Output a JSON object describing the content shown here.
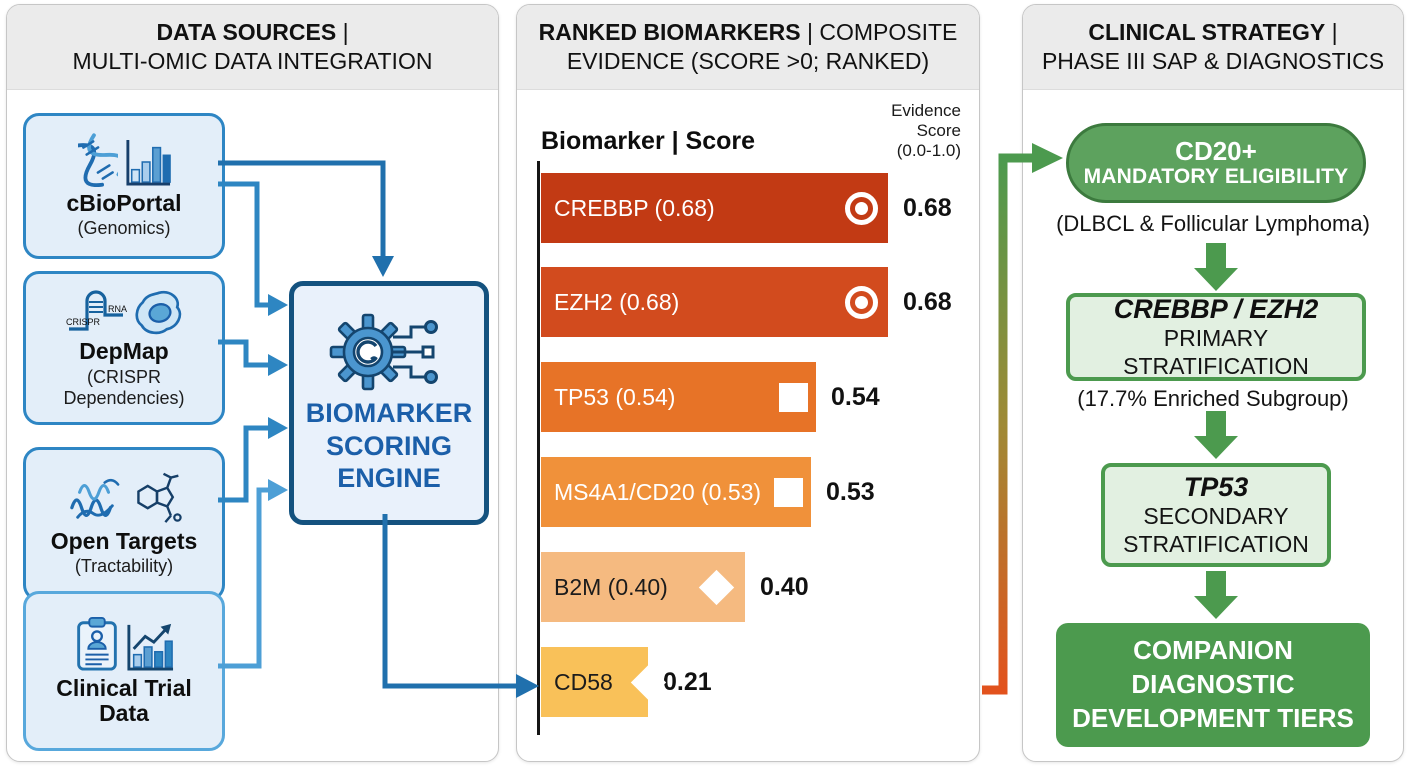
{
  "palette": {
    "green": "#4c9a4e",
    "green-pill": "#5da25e",
    "green-light": "#e2f0e1",
    "blue-border": "#2e86c4",
    "blue-connector-dark": "#2070ad",
    "blue-connector-mid": "#2e86c2",
    "blue-connector-light": "#4d9fd6",
    "gradient-arrow-start": "#e2521d",
    "gradient-arrow-end": "#4c9a4e"
  },
  "sources": {
    "title_bold": "DATA SOURCES",
    "title_rest": " |",
    "title_line2": "MULTI-OMIC DATA INTEGRATION",
    "boxes": [
      {
        "label": "cBioPortal",
        "sublabel": "(Genomics)",
        "icons": [
          "dna-icon",
          "bar-chart-icon"
        ]
      },
      {
        "label": "DepMap",
        "sublabel": "(CRISPR Dependencies)",
        "icons": [
          "crispr-rna-icon",
          "cell-icon"
        ],
        "icon_text_left": "CRISPR",
        "icon_text_right": "RNA"
      },
      {
        "label": "Open Targets",
        "sublabel": "(Tractability)",
        "icons": [
          "protein-icon",
          "molecule-icon"
        ]
      },
      {
        "label": "Clinical Trial Data",
        "sublabel": "",
        "icons": [
          "clipboard-patient-icon",
          "trend-chart-icon"
        ]
      }
    ],
    "engine_label": "BIOMARKER SCORING ENGINE"
  },
  "ranked": {
    "title_bold": "RANKED BIOMARKERS",
    "title_rest": " | COMPOSITE",
    "title_line2": "EVIDENCE (SCORE >0; RANKED)",
    "col_header": "Biomarker | Score",
    "axis_note_lines": [
      "Evidence",
      "Score",
      "(0.0-1.0)"
    ],
    "chart_data": {
      "type": "bar",
      "orientation": "horizontal",
      "title": "RANKED BIOMARKERS | COMPOSITE EVIDENCE (SCORE >0; RANKED)",
      "xlabel": "Evidence Score (0.0-1.0)",
      "xlim": [
        0.0,
        1.0
      ],
      "grid": false,
      "bars": [
        {
          "gene": "CREBBP",
          "label": "CREBBP (0.68)",
          "value": 0.68,
          "score_label": "0.68",
          "color": "#c23a14",
          "text_color": "#ffffff",
          "marker": "target"
        },
        {
          "gene": "EZH2",
          "label": "EZH2 (0.68)",
          "value": 0.68,
          "score_label": "0.68",
          "color": "#d24b1e",
          "text_color": "#ffffff",
          "marker": "target"
        },
        {
          "gene": "TP53",
          "label": "TP53 (0.54)",
          "value": 0.54,
          "score_label": "0.54",
          "color": "#e77327",
          "text_color": "#ffffff",
          "marker": "square"
        },
        {
          "gene": "MS4A1/CD20",
          "label": "MS4A1/CD20 (0.53)",
          "value": 0.53,
          "score_label": "0.53",
          "color": "#f0913a",
          "text_color": "#ffffff",
          "marker": "square"
        },
        {
          "gene": "B2M",
          "label": "B2M (0.40)",
          "value": 0.4,
          "score_label": "0.40",
          "color": "#f5ba80",
          "text_color": "#1c1c1c",
          "marker": "diamond"
        },
        {
          "gene": "CD58",
          "label": "CD58",
          "value": 0.21,
          "score_label": "0.21",
          "color": "#f9c159",
          "text_color": "#1c1c1c",
          "marker": "diamond"
        }
      ]
    }
  },
  "strategy": {
    "title_bold": "CLINICAL STRATEGY",
    "title_rest": " |",
    "title_line2": "PHASE III SAP & DIAGNOSTICS",
    "pill_title": "CD20+",
    "pill_subtitle": "MANDATORY ELIGIBILITY",
    "pill_note": "(DLBCL & Follicular Lymphoma)",
    "primary_title": "CREBBP / EZH2",
    "primary_subtitle": "PRIMARY STRATIFICATION",
    "primary_note": "(17.7% Enriched Subgroup)",
    "secondary_title": "TP53",
    "secondary_subtitle": "SECONDARY STRATIFICATION",
    "final": "COMPANION DIAGNOSTIC DEVELOPMENT TIERS"
  }
}
